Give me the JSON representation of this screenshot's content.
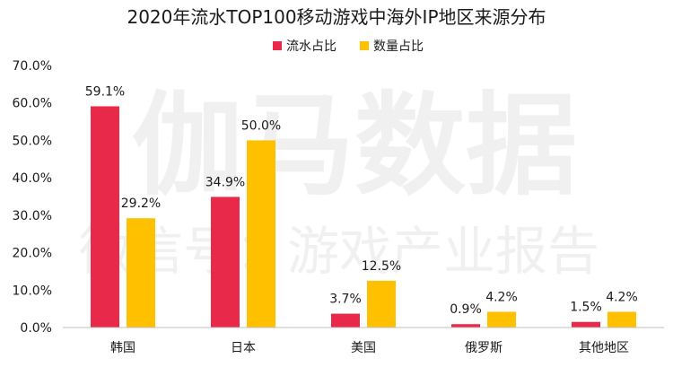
{
  "chart_data": {
    "type": "bar",
    "title": "2020年流水TOP100移动游戏中海外IP地区来源分布",
    "categories": [
      "韩国",
      "日本",
      "美国",
      "俄罗斯",
      "其他地区"
    ],
    "series": [
      {
        "name": "流水占比",
        "values": [
          59.1,
          34.9,
          3.7,
          0.9,
          1.5
        ],
        "labels": [
          "59.1%",
          "34.9%",
          "3.7%",
          "0.9%",
          "1.5%"
        ],
        "color": "#E8294A"
      },
      {
        "name": "数量占比",
        "values": [
          29.2,
          50.0,
          12.5,
          4.2,
          4.2
        ],
        "labels": [
          "29.2%",
          "50.0%",
          "12.5%",
          "4.2%",
          "4.2%"
        ],
        "color": "#FFC000"
      }
    ],
    "ylim": [
      0,
      70
    ],
    "yticks": [
      "0.0%",
      "10.0%",
      "20.0%",
      "30.0%",
      "40.0%",
      "50.0%",
      "60.0%",
      "70.0%"
    ],
    "legend_position": "top-center",
    "grid": false,
    "xlabel": "",
    "ylabel": ""
  },
  "watermark": {
    "line1": "伽马数据",
    "line2": "微信号：游戏产业报告"
  }
}
